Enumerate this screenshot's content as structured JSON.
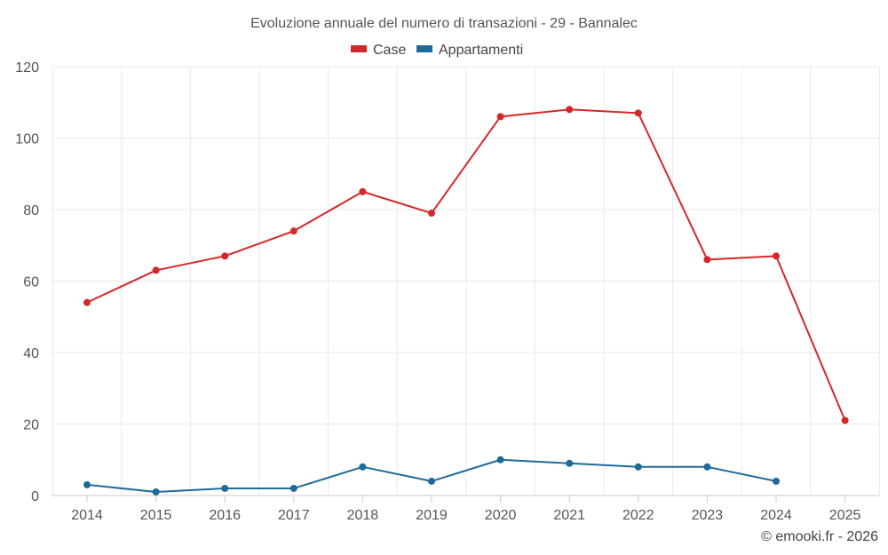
{
  "chart_data": {
    "type": "line",
    "title": "Evoluzione annuale del numero di transazioni - 29 - Bannalec",
    "xlabel": "",
    "ylabel": "",
    "x": [
      "2014",
      "2015",
      "2016",
      "2017",
      "2018",
      "2019",
      "2020",
      "2021",
      "2022",
      "2023",
      "2024",
      "2025"
    ],
    "ylim": [
      0,
      120
    ],
    "yticks": [
      0,
      20,
      40,
      60,
      80,
      100,
      120
    ],
    "grid": true,
    "legend_position": "top-center",
    "series": [
      {
        "name": "Case",
        "color": "#d62728",
        "values": [
          54,
          63,
          67,
          74,
          85,
          79,
          106,
          108,
          107,
          66,
          67,
          21
        ]
      },
      {
        "name": "Appartamenti",
        "color": "#1f6a9a",
        "values": [
          3,
          1,
          2,
          2,
          8,
          4,
          10,
          9,
          8,
          8,
          4,
          null
        ]
      }
    ]
  },
  "credit": "© emooki.fr - 2026"
}
